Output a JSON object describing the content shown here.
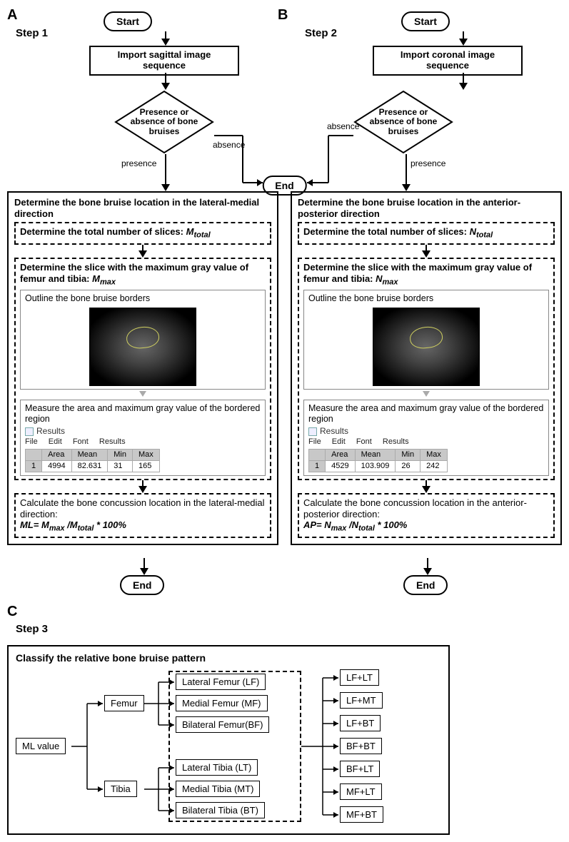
{
  "labels": {
    "A": "A",
    "B": "B",
    "C": "C",
    "step1": "Step 1",
    "step2": "Step 2",
    "step3": "Step 3",
    "start": "Start",
    "end": "End",
    "presence": "presence",
    "absence": "absence"
  },
  "flowA": {
    "import": "Import sagittal image sequence",
    "decision": "Presence or absence of bone bruises",
    "bigTitle": "Determine the bone bruise location in the lateral-medial direction",
    "d1_pre": "Determine the total number of slices: ",
    "d1_var": "M",
    "d1_sub": "total",
    "d2_pre": "Determine the slice with the maximum gray value of femur and tibia: ",
    "d2_var": "M",
    "d2_sub": "max",
    "outline": "Outline the bone bruise borders",
    "measure": "Measure the area and maximum gray value of the bordered region",
    "resultsTitle": "Results",
    "menu": {
      "file": "File",
      "edit": "Edit",
      "font": "Font",
      "results": "Results"
    },
    "columns": [
      "",
      "Area",
      "Mean",
      "Min",
      "Max"
    ],
    "row": [
      "1",
      "4994",
      "82.631",
      "31",
      "165"
    ],
    "calcTitle": "Calculate the bone concussion location in the lateral-medial direction:",
    "formula_html": "ML= M<sub>max</sub> /M<sub>total</sub> * 100%"
  },
  "flowB": {
    "import": "Import coronal image sequence",
    "decision": "Presence or absence of bone bruises",
    "bigTitle": "Determine the bone bruise location in the anterior-posterior direction",
    "d1_pre": "Determine the total number of slices: ",
    "d1_var": "N",
    "d1_sub": "total",
    "d2_pre": "Determine the slice with the maximum gray value of femur and tibia: ",
    "d2_var": "N",
    "d2_sub": "max",
    "outline": "Outline the bone bruise borders",
    "measure": "Measure the area and maximum gray value of the bordered region",
    "resultsTitle": "Results",
    "menu": {
      "file": "File",
      "edit": "Edit",
      "font": "Font",
      "results": "Results"
    },
    "columns": [
      "",
      "Area",
      "Mean",
      "Min",
      "Max"
    ],
    "row": [
      "1",
      "4529",
      "103.909",
      "26",
      "242"
    ],
    "calcTitle": "Calculate the bone concussion location in the anterior-posterior direction:",
    "formula_html": "AP= N<sub>max</sub> /N<sub>total</sub> * 100%"
  },
  "C": {
    "title": "Classify the relative bone bruise pattern",
    "root": "ML value",
    "femur": "Femur",
    "tibia": "Tibia",
    "femurTypes": [
      "Lateral Femur (LF)",
      "Medial Femur (MF)",
      "Bilateral Femur(BF)"
    ],
    "tibiaTypes": [
      "Lateral Tibia (LT)",
      "Medial Tibia (MT)",
      "Bilateral Tibia (BT)"
    ],
    "combos": [
      "LF+LT",
      "LF+MT",
      "LF+BT",
      "BF+BT",
      "BF+LT",
      "MF+LT",
      "MF+BT"
    ]
  },
  "style": {
    "background": "#ffffff",
    "stroke": "#000000",
    "dash": "#000000",
    "tableHeaderBg": "#c8c8c8",
    "mriOutline": "#cfcf60"
  }
}
